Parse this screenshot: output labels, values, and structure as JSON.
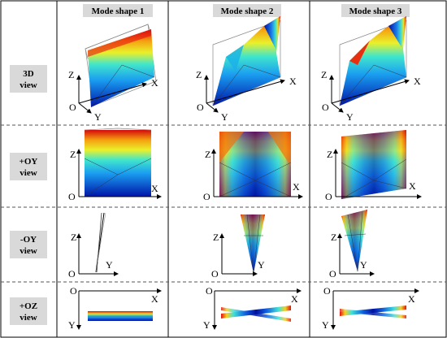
{
  "headers": [
    "Mode shape 1",
    "Mode shape 2",
    "Mode shape 3"
  ],
  "rows": [
    {
      "line1": "3D",
      "line2": "view"
    },
    {
      "line1": "+OY",
      "line2": "view"
    },
    {
      "line1": "-OY",
      "line2": "view"
    },
    {
      "line1": "+OZ",
      "line2": "view"
    }
  ],
  "axes": {
    "x": "X",
    "y": "Y",
    "z": "Z",
    "o": "O"
  }
}
